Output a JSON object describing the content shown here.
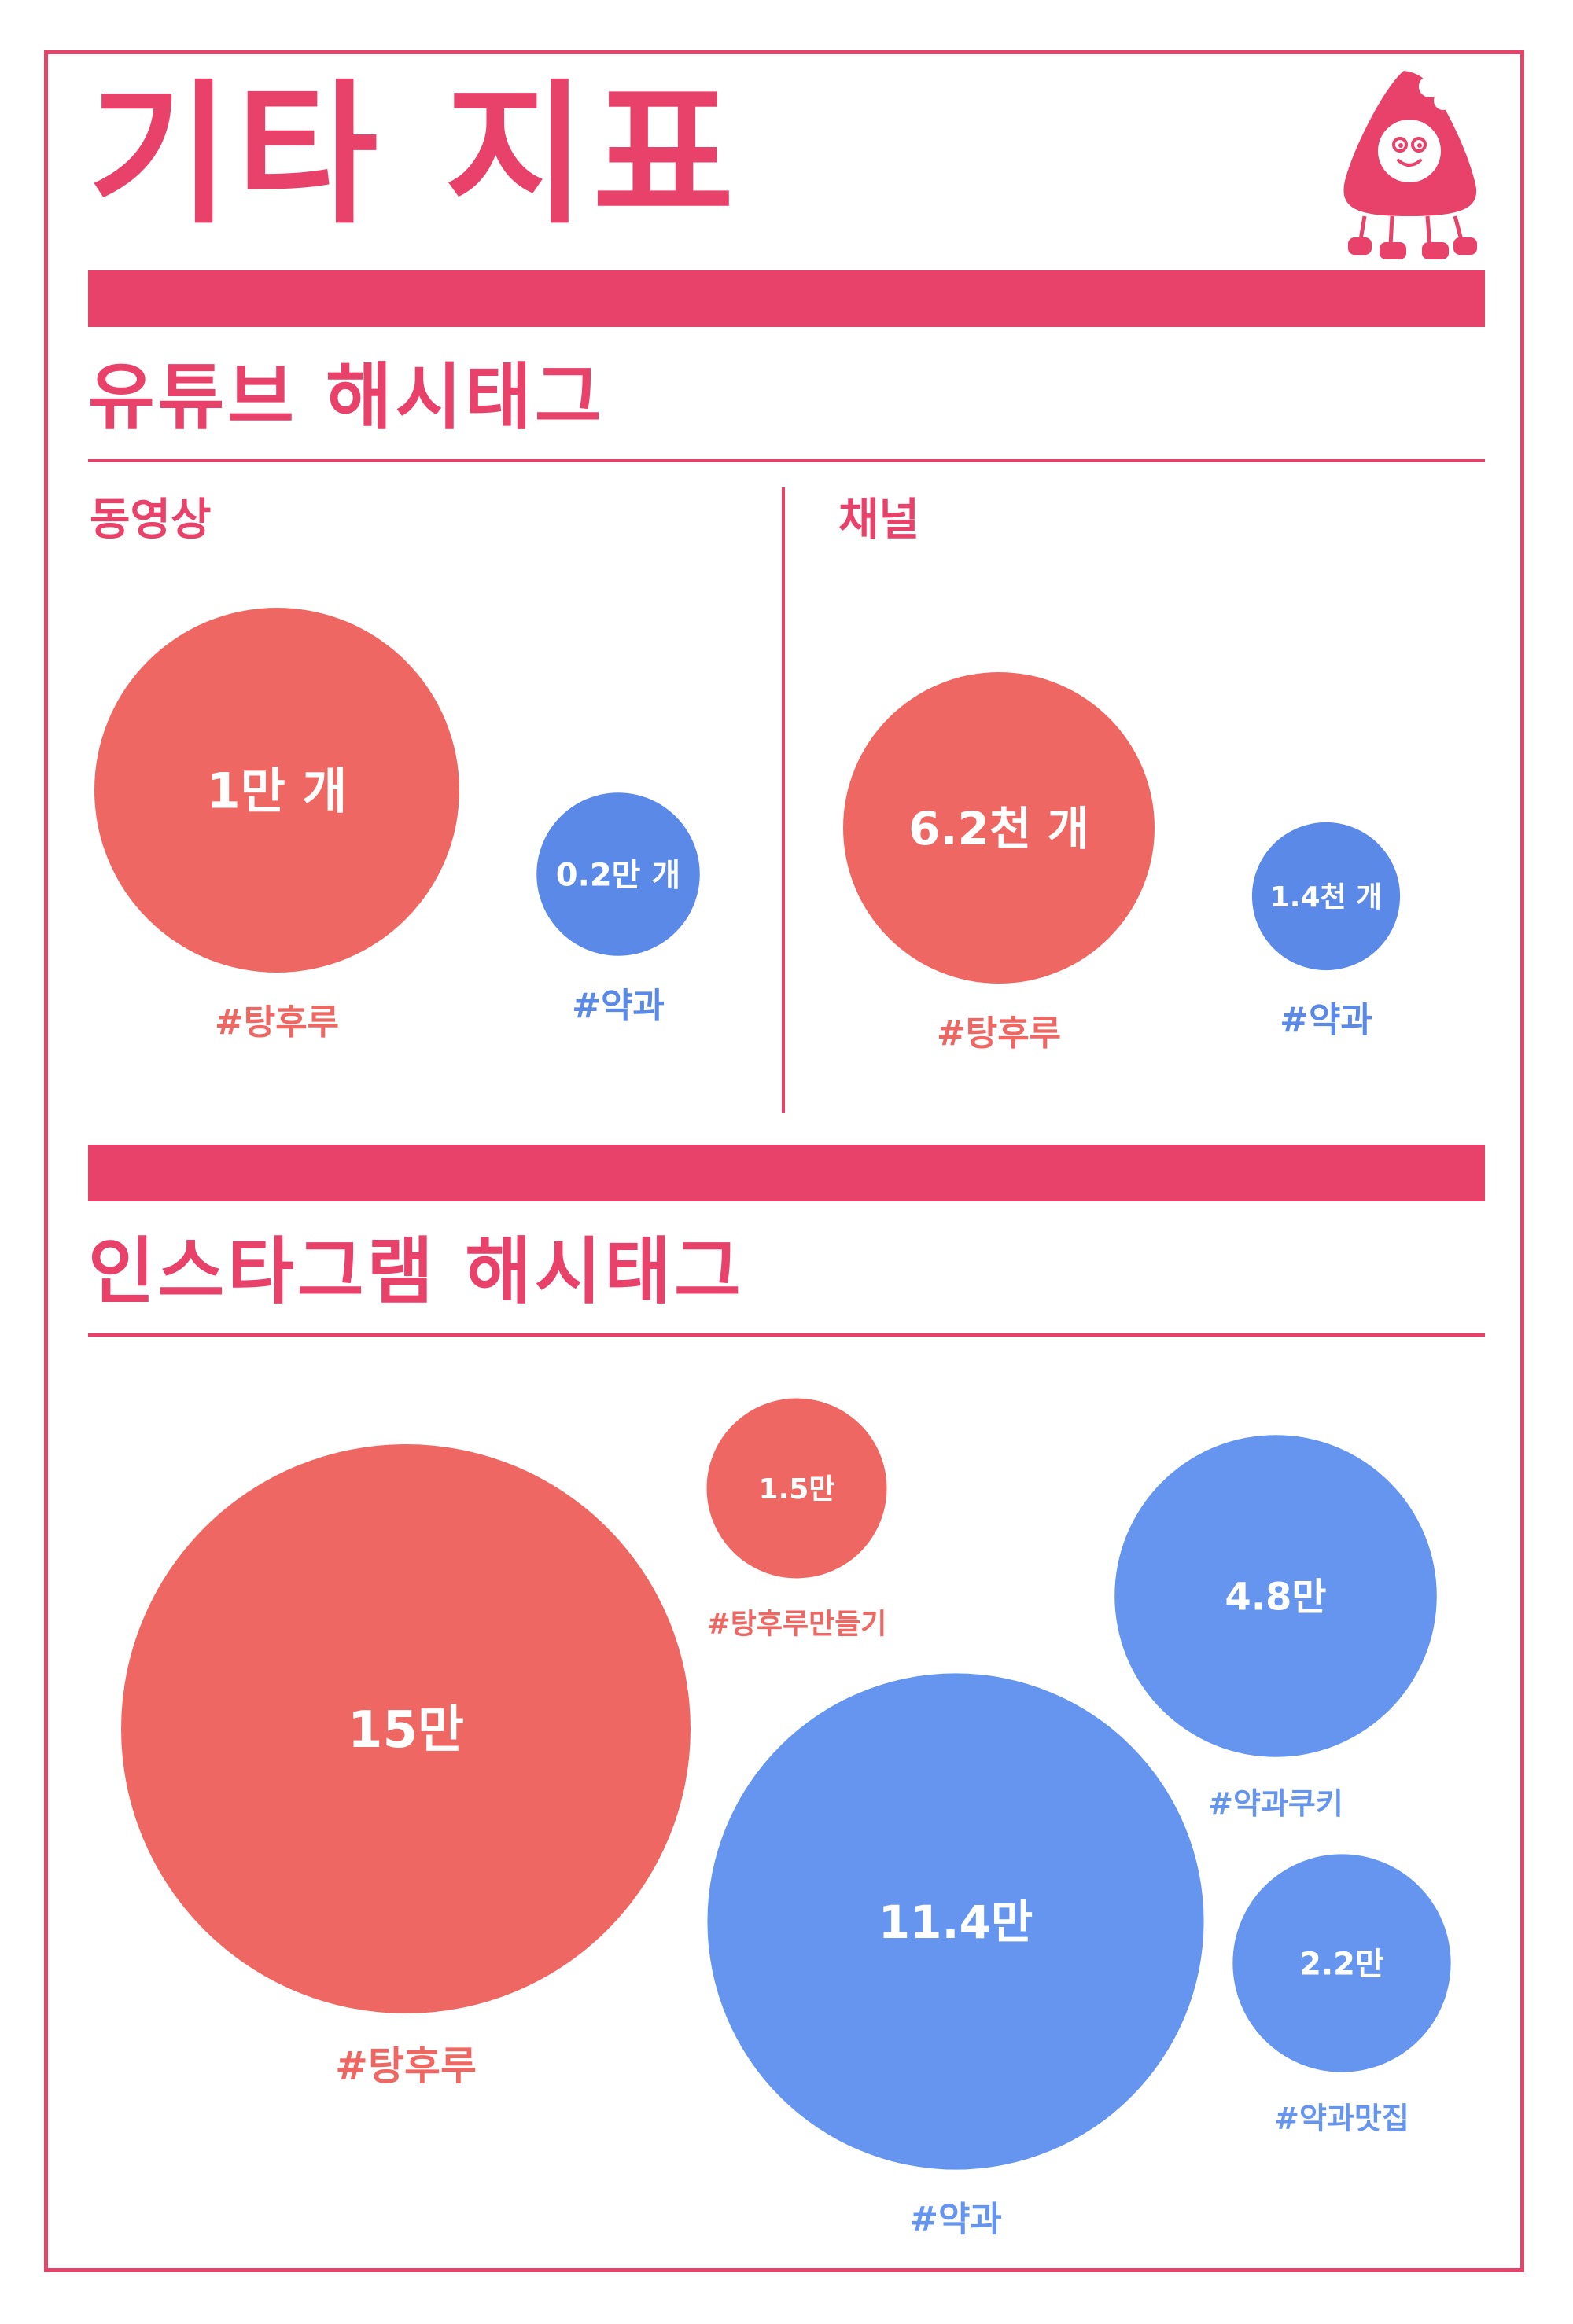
{
  "title": "기타 지표",
  "colors": {
    "brand": "#e8416a",
    "tanghulu": "#ef6763",
    "yakgwa_youtube": "#5b89e8",
    "yakgwa_instagram": "#6595ee"
  },
  "youtube": {
    "title": "유튜브 해시태그",
    "video": {
      "label": "동영상"
    },
    "channel": {
      "label": "채널"
    }
  },
  "instagram": {
    "title": "인스타그램 해시태그"
  },
  "chart_data": [
    {
      "type": "bubble",
      "group": "youtube-video",
      "unit": "개",
      "series": [
        {
          "name": "#탕후루",
          "value": 10000,
          "label": "1만 개",
          "color": "#ef6763"
        },
        {
          "name": "#약과",
          "value": 2000,
          "label": "0.2만 개",
          "color": "#5b89e8"
        }
      ]
    },
    {
      "type": "bubble",
      "group": "youtube-channel",
      "unit": "개",
      "series": [
        {
          "name": "#탕후루",
          "value": 6200,
          "label": "6.2천 개",
          "color": "#ef6763"
        },
        {
          "name": "#약과",
          "value": 1400,
          "label": "1.4천 개",
          "color": "#5b89e8"
        }
      ]
    },
    {
      "type": "bubble",
      "group": "instagram",
      "series": [
        {
          "name": "#탕후루",
          "value": 150000,
          "label": "15만",
          "color": "#ef6763"
        },
        {
          "name": "#탕후루만들기",
          "value": 15000,
          "label": "1.5만",
          "color": "#ef6763"
        },
        {
          "name": "#약과",
          "value": 114000,
          "label": "11.4만",
          "color": "#6595ee"
        },
        {
          "name": "#약과쿠키",
          "value": 48000,
          "label": "4.8만",
          "color": "#6595ee"
        },
        {
          "name": "#약과맛집",
          "value": 22000,
          "label": "2.2만",
          "color": "#6595ee"
        }
      ]
    }
  ]
}
